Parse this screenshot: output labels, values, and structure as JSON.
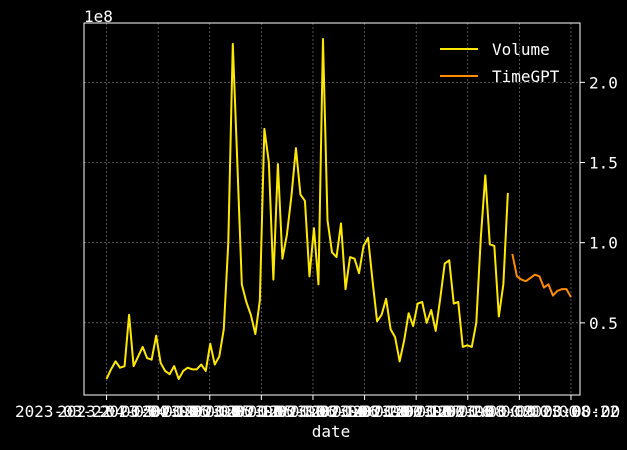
{
  "chart_data": {
    "type": "line",
    "xlabel": "date",
    "ylabel": "",
    "y_offset_label": "1e8",
    "x_tick_labels": [
      "2023-03-22",
      "2023-04-08",
      "2023-04-25",
      "2023-05-12",
      "2023-05-29",
      "2023-06-15",
      "2023-07-02",
      "2023-07-19",
      "2023-08-05",
      "2023-08-22"
    ],
    "x_tick_overlaps": [
      "2023-03-22 00:00:00",
      "2023-04-05 00:00:00",
      "2023-04-19 00:00:00",
      "2023-05-03 00:00:00",
      "2023-05-17 00:00:00",
      "2023-05-31 00:00:00",
      "2023-06-14 00:00:00",
      "2023-06-28 00:00:00",
      "2023-07-12 00:00:00",
      "2023-07-26 00:00:00",
      "2023-08-09 00:00:00",
      "2023-08-22"
    ],
    "y_ticks": [
      0.5,
      1.0,
      1.5,
      2.0
    ],
    "y_tick_labels": [
      "0.5",
      "1.0",
      "1.5",
      "2.0"
    ],
    "ylim": [
      0.05,
      2.37
    ],
    "xlim": [
      -5,
      105
    ],
    "grid": true,
    "legend_position": "top-right",
    "colors": {
      "background": "#000000",
      "grid": "#888888",
      "axis": "#ffffff",
      "volume": "#ffe800",
      "timegpt": "#ff8c00"
    },
    "series": [
      {
        "name": "Volume",
        "color": "#ffe800",
        "y": [
          0.15,
          0.21,
          0.26,
          0.22,
          0.23,
          0.55,
          0.23,
          0.29,
          0.35,
          0.28,
          0.27,
          0.42,
          0.25,
          0.2,
          0.18,
          0.23,
          0.15,
          0.2,
          0.22,
          0.21,
          0.21,
          0.24,
          0.2,
          0.37,
          0.24,
          0.29,
          0.46,
          1.0,
          2.24,
          1.5,
          0.74,
          0.63,
          0.55,
          0.43,
          0.64,
          1.71,
          1.5,
          0.77,
          1.49,
          0.9,
          1.05,
          1.29,
          1.59,
          1.3,
          1.26,
          0.79,
          1.09,
          0.74,
          2.27,
          1.14,
          0.94,
          0.91,
          1.12,
          0.71,
          0.91,
          0.9,
          0.81,
          0.98,
          1.03,
          0.76,
          0.51,
          0.55,
          0.65,
          0.46,
          0.41,
          0.26,
          0.39,
          0.56,
          0.48,
          0.62,
          0.63,
          0.5,
          0.58,
          0.45,
          0.65,
          0.87,
          0.89,
          0.62,
          0.63,
          0.35,
          0.36,
          0.35,
          0.5,
          1.03,
          1.42,
          0.99,
          0.98,
          0.54,
          0.74,
          1.31
        ],
        "x_start": 0
      },
      {
        "name": "TimeGPT",
        "color": "#ff8c00",
        "y": [
          0.93,
          0.79,
          0.77,
          0.76,
          0.78,
          0.8,
          0.79,
          0.72,
          0.74,
          0.67,
          0.7,
          0.71,
          0.71,
          0.66
        ],
        "x_start": 90
      }
    ]
  }
}
